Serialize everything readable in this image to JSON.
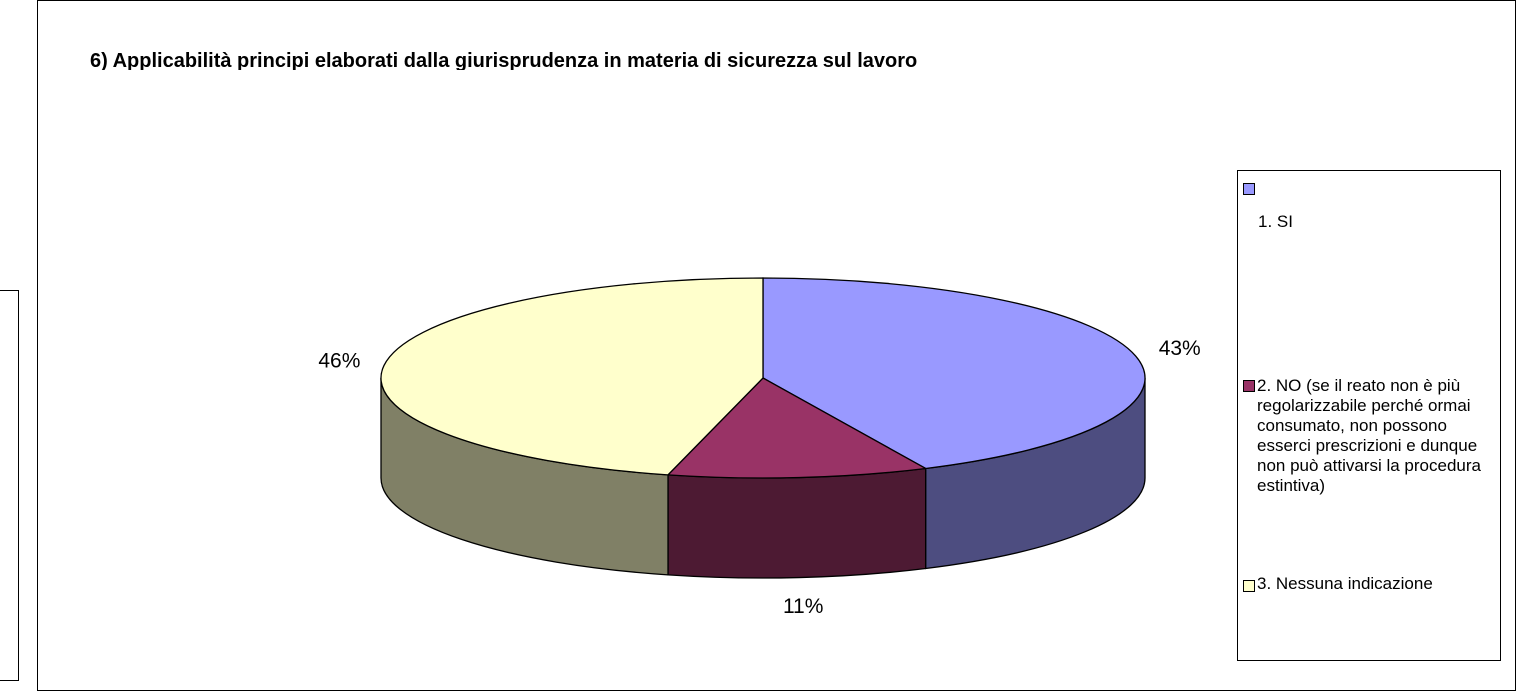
{
  "chart_data": {
    "type": "pie3d",
    "title": "6) Applicabilità principi elaborati dalla giurisprudenza in materia di sicurezza sul lavoro",
    "categories": [
      "1. SI",
      "2. NO (se il reato non è più regolarizzabile perché ormai consumato, non possono esserci prescrizioni e dunque non può attivarsi la procedura estintiva)",
      "3. Nessuna indicazione"
    ],
    "values": [
      43,
      11,
      46
    ],
    "value_labels": [
      "43%",
      "11%",
      "46%"
    ],
    "colors": [
      "#9999ff",
      "#993366",
      "#ffffcc"
    ],
    "legend": "right"
  }
}
